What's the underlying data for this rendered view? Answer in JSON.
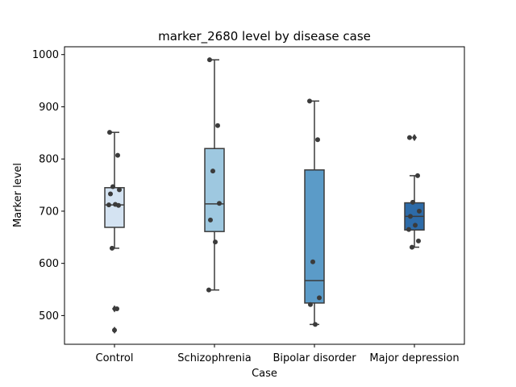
{
  "chart_data": {
    "type": "box",
    "title": "marker_2680 level by disease case",
    "xlabel": "Case",
    "ylabel": "Marker level",
    "ylim": [
      445,
      1015
    ],
    "yticks": [
      500,
      600,
      700,
      800,
      900,
      1000
    ],
    "grid": false,
    "legend": "none",
    "categories": [
      "Control",
      "Schizophrenia",
      "Bipolar disorder",
      "Major depression"
    ],
    "boxes": [
      {
        "category": "Control",
        "color": "#d4e3f2",
        "q1": 669,
        "median": 712,
        "q3": 745,
        "whisker_low": 629,
        "whisker_high": 851,
        "outliers": [
          513,
          472
        ],
        "points": [
          851,
          807,
          747,
          741,
          733,
          713,
          712,
          711,
          629,
          513,
          472
        ]
      },
      {
        "category": "Schizophrenia",
        "color": "#9ec8e0",
        "q1": 661,
        "median": 714,
        "q3": 820,
        "whisker_low": 549,
        "whisker_high": 990,
        "outliers": [],
        "points": [
          990,
          864,
          777,
          715,
          683,
          641,
          549
        ]
      },
      {
        "category": "Bipolar disorder",
        "color": "#5b9bc8",
        "q1": 524,
        "median": 567,
        "q3": 779,
        "whisker_low": 483,
        "whisker_high": 911,
        "outliers": [],
        "points": [
          911,
          837,
          603,
          534,
          521,
          483
        ]
      },
      {
        "category": "Major depression",
        "color": "#2d6ba8",
        "q1": 664,
        "median": 690,
        "q3": 716,
        "whisker_low": 631,
        "whisker_high": 768,
        "outliers": [
          841
        ],
        "points": [
          841,
          768,
          717,
          700,
          690,
          673,
          665,
          643,
          631
        ]
      }
    ],
    "colors": {
      "box_edge": "#3b3b3b",
      "points": "#3b3b3b"
    }
  }
}
